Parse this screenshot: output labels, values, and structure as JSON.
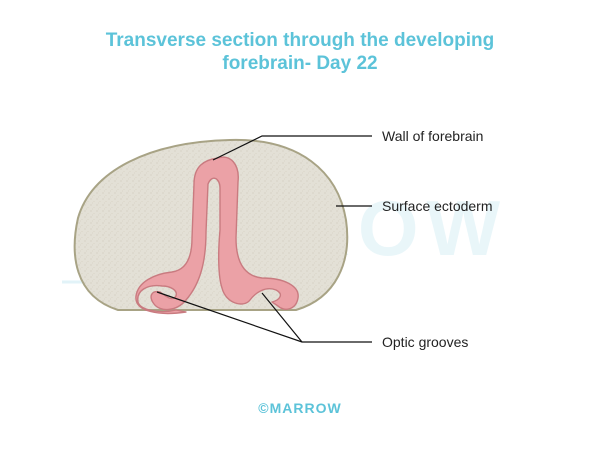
{
  "title": {
    "line1": "Transverse section through the developing",
    "line2": "forebrain- Day 22"
  },
  "labels": {
    "wall": "Wall of forebrain",
    "ectoderm": "Surface ectoderm",
    "optic": "Optic grooves"
  },
  "watermark": "MARROW",
  "copyright": "©MARROW",
  "colors": {
    "title": "#5cc3d9",
    "ectoderm_fill": "#e3e0d6",
    "ectoderm_outline": "#a8a385",
    "forebrain_wall": "#eba1a6",
    "forebrain_outline": "#c97b80",
    "leader_line": "#111111"
  }
}
